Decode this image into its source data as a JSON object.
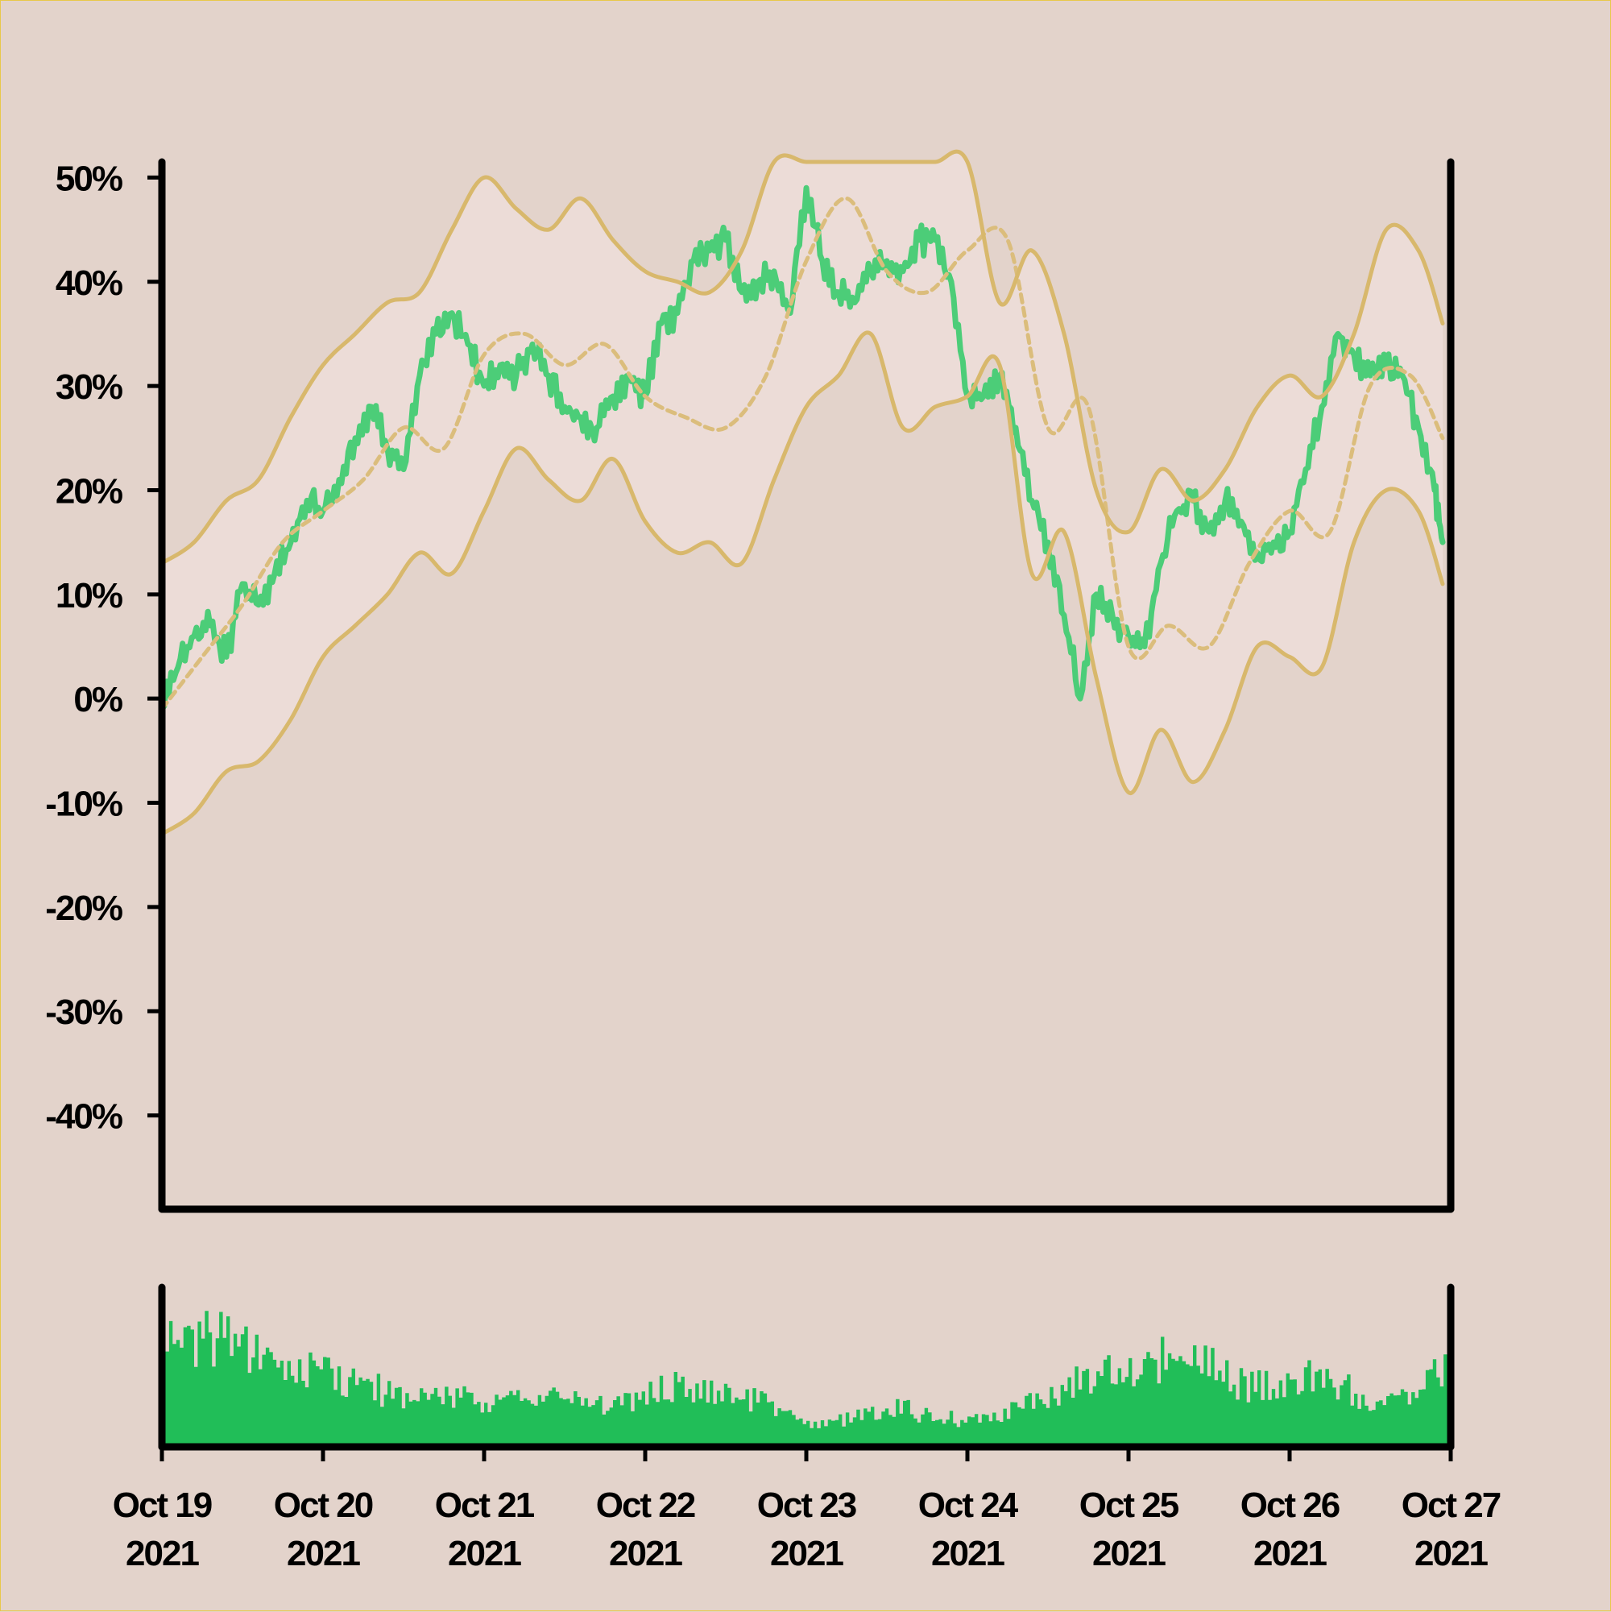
{
  "chart_data": {
    "type": "line",
    "title": "",
    "xlabel": "",
    "ylabel": "",
    "y_ticks": [
      "50%",
      "40%",
      "30%",
      "20%",
      "10%",
      "0%",
      "-10%",
      "-20%",
      "-30%",
      "-40%"
    ],
    "y_tick_values": [
      50,
      40,
      30,
      20,
      10,
      0,
      -10,
      -20,
      -30,
      -40
    ],
    "ylim": [
      -49,
      51.5
    ],
    "x_ticks": [
      {
        "month_day": "Oct 19",
        "year": "2021",
        "day": 0
      },
      {
        "month_day": "Oct 20",
        "year": "2021",
        "day": 1
      },
      {
        "month_day": "Oct 21",
        "year": "2021",
        "day": 2
      },
      {
        "month_day": "Oct 22",
        "year": "2021",
        "day": 3
      },
      {
        "month_day": "Oct 23",
        "year": "2021",
        "day": 4
      },
      {
        "month_day": "Oct 24",
        "year": "2021",
        "day": 5
      },
      {
        "month_day": "Oct 25",
        "year": "2021",
        "day": 6
      },
      {
        "month_day": "Oct 26",
        "year": "2021",
        "day": 7
      },
      {
        "month_day": "Oct 27",
        "year": "2021",
        "day": 8
      }
    ],
    "xlim_days": [
      0,
      8
    ],
    "grid": false,
    "series": [
      {
        "role": "value",
        "color": "#4ccd78",
        "style": "solid",
        "x": [
          0,
          0.1,
          0.2,
          0.3,
          0.4,
          0.5,
          0.6,
          0.7,
          0.8,
          0.9,
          1,
          1.1,
          1.2,
          1.3,
          1.4,
          1.5,
          1.6,
          1.7,
          1.8,
          1.9,
          2,
          2.1,
          2.2,
          2.3,
          2.4,
          2.5,
          2.6,
          2.7,
          2.8,
          2.9,
          3,
          3.1,
          3.2,
          3.3,
          3.4,
          3.5,
          3.6,
          3.7,
          3.8,
          3.9,
          4,
          4.1,
          4.2,
          4.3,
          4.4,
          4.5,
          4.6,
          4.7,
          4.8,
          4.9,
          5,
          5.1,
          5.2,
          5.3,
          5.4,
          5.5,
          5.6,
          5.7,
          5.8,
          5.9,
          6,
          6.1,
          6.2,
          6.3,
          6.4,
          6.5,
          6.6,
          6.7,
          6.8,
          6.9,
          7,
          7.1,
          7.2,
          7.3,
          7.4,
          7.5,
          7.6,
          7.7,
          7.8,
          7.9,
          7.95
        ],
        "y": [
          -1,
          3,
          6,
          7,
          4,
          11,
          9,
          12,
          15,
          19,
          18,
          21,
          25,
          28,
          24,
          22,
          31,
          35,
          37,
          34,
          30,
          32,
          31,
          34,
          31,
          28,
          27,
          26,
          29,
          31,
          29,
          36,
          37,
          42,
          43,
          44,
          39,
          40,
          41,
          37,
          49,
          42,
          39,
          38,
          41,
          42,
          41,
          44,
          44,
          40,
          29,
          29,
          31,
          26,
          19,
          15,
          8,
          0,
          10,
          8,
          6,
          5,
          13,
          18,
          19,
          16,
          19,
          17,
          14,
          15,
          16,
          22,
          28,
          35,
          33,
          31,
          32,
          31,
          26,
          20,
          15
        ]
      },
      {
        "role": "moving average",
        "color": "#dbbd7c",
        "style": "dashed",
        "x": [
          0,
          0.25,
          0.5,
          0.75,
          1,
          1.25,
          1.5,
          1.75,
          2,
          2.25,
          2.5,
          2.75,
          3,
          3.25,
          3.5,
          3.75,
          4,
          4.25,
          4.5,
          4.75,
          5,
          5.25,
          5.5,
          5.75,
          6,
          6.25,
          6.5,
          6.75,
          7,
          7.25,
          7.5,
          7.75,
          7.95
        ],
        "y": [
          -1,
          4,
          9,
          15,
          18,
          21,
          26,
          24,
          33,
          35,
          32,
          34,
          29,
          27,
          26,
          31,
          42,
          48,
          41,
          39,
          43,
          44,
          26,
          28,
          5,
          7,
          5,
          13,
          18,
          16,
          30,
          31,
          25
        ]
      },
      {
        "role": "upper band",
        "color": "#d8b86c",
        "style": "solid",
        "x": [
          0,
          0.2,
          0.4,
          0.6,
          0.8,
          1,
          1.2,
          1.4,
          1.6,
          1.8,
          2,
          2.2,
          2.4,
          2.6,
          2.8,
          3,
          3.2,
          3.4,
          3.6,
          3.8,
          4,
          4.2,
          4.4,
          4.6,
          4.8,
          5,
          5.2,
          5.4,
          5.6,
          5.8,
          6,
          6.2,
          6.4,
          6.6,
          6.8,
          7,
          7.2,
          7.4,
          7.6,
          7.8,
          7.95
        ],
        "y": [
          13,
          15,
          19,
          21,
          27,
          32,
          35,
          38,
          39,
          45,
          50,
          47,
          45,
          48,
          44,
          41,
          40,
          39,
          43,
          51.5,
          51.5,
          51.5,
          51.5,
          51.5,
          51.5,
          51.5,
          38,
          43,
          35,
          20,
          16,
          22,
          19,
          22,
          28,
          31,
          29,
          35,
          45,
          43,
          36
        ]
      },
      {
        "role": "lower band",
        "color": "#d8b86c",
        "style": "solid",
        "x": [
          0,
          0.2,
          0.4,
          0.6,
          0.8,
          1,
          1.2,
          1.4,
          1.6,
          1.8,
          2,
          2.2,
          2.4,
          2.6,
          2.8,
          3,
          3.2,
          3.4,
          3.6,
          3.8,
          4,
          4.2,
          4.4,
          4.6,
          4.8,
          5,
          5.2,
          5.4,
          5.6,
          5.8,
          6,
          6.2,
          6.4,
          6.6,
          6.8,
          7,
          7.2,
          7.4,
          7.6,
          7.8,
          7.95
        ],
        "y": [
          -13,
          -11,
          -7,
          -6,
          -2,
          4,
          7,
          10,
          14,
          12,
          18,
          24,
          21,
          19,
          23,
          17,
          14,
          15,
          13,
          21,
          28,
          31,
          35,
          26,
          28,
          29,
          32,
          12,
          16,
          2,
          -9,
          -3,
          -8,
          -3,
          5,
          4,
          3,
          15,
          20,
          18,
          11
        ]
      }
    ],
    "volume_panel": {
      "type": "bar",
      "color": "#21be58",
      "x": [
        0,
        0.25,
        0.5,
        0.75,
        1,
        1.25,
        1.5,
        1.75,
        2,
        2.25,
        2.5,
        2.75,
        3,
        3.25,
        3.5,
        3.75,
        4,
        4.25,
        4.5,
        4.75,
        5,
        5.25,
        5.5,
        5.75,
        6,
        6.25,
        6.5,
        6.75,
        7,
        7.25,
        7.5,
        7.75,
        7.95
      ],
      "relative_values": [
        0.85,
        0.85,
        0.75,
        0.55,
        0.55,
        0.45,
        0.4,
        0.4,
        0.35,
        0.4,
        0.35,
        0.3,
        0.4,
        0.45,
        0.4,
        0.35,
        0.15,
        0.2,
        0.3,
        0.25,
        0.2,
        0.25,
        0.4,
        0.5,
        0.6,
        0.65,
        0.6,
        0.45,
        0.5,
        0.55,
        0.3,
        0.4,
        0.55
      ]
    }
  }
}
